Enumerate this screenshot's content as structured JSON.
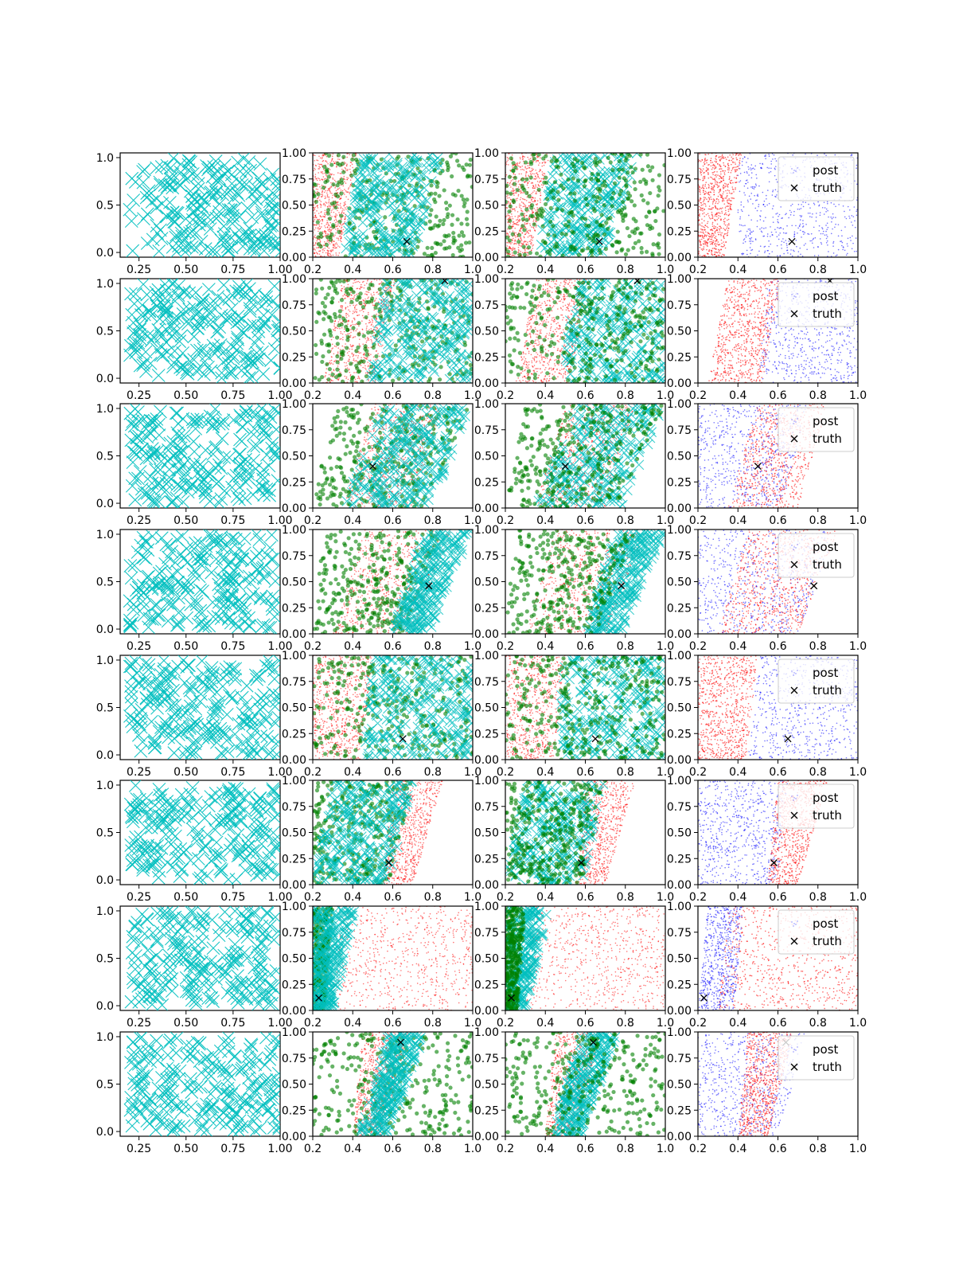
{
  "chart_data": {
    "type": "scatter",
    "layout": {
      "rows": 8,
      "cols": 4
    },
    "colors": {
      "cyan": "#00bfbf",
      "green": "#008000",
      "red": "#ff0000",
      "blue": "#0000ff",
      "truth": "#000000"
    },
    "col1": {
      "xlim": [
        0.15,
        1.0
      ],
      "ylim": [
        -0.05,
        1.05
      ],
      "xticks": [
        "0.25",
        "0.50",
        "0.75",
        "1.00"
      ],
      "xtick_values": [
        0.25,
        0.5,
        0.75,
        1.0
      ],
      "yticks": [
        "0.0",
        "0.5",
        "1.0"
      ],
      "ytick_values": [
        0.0,
        0.5,
        1.0
      ]
    },
    "cols234": {
      "xlim": [
        0.2,
        1.0
      ],
      "ylim": [
        0.0,
        1.0
      ],
      "xticks": [
        "0.2",
        "0.4",
        "0.6",
        "0.8",
        "1.0"
      ],
      "xtick_values": [
        0.2,
        0.4,
        0.6,
        0.8,
        1.0
      ],
      "yticks": [
        "0.00",
        "0.25",
        "0.50",
        "0.75",
        "1.00"
      ],
      "ytick_values": [
        0.0,
        0.25,
        0.5,
        0.75,
        1.0
      ]
    },
    "legend": {
      "entries": [
        "post",
        "truth"
      ],
      "placement": "upper-right"
    },
    "rows": [
      {
        "truth": [
          0.67,
          0.15
        ],
        "red": {
          "x_at_y0": [
            0.2,
            0.33
          ],
          "x_at_y1": [
            0.2,
            0.42
          ]
        },
        "green": {
          "x_at_y0": [
            0.2,
            1.0
          ],
          "x_at_y1": [
            0.2,
            1.0
          ]
        },
        "cyan": {
          "x_at_y0": [
            0.35,
            0.7
          ],
          "x_at_y1": [
            0.45,
            0.86
          ]
        },
        "blue": {
          "x_at_y0": [
            0.4,
            1.0
          ],
          "x_at_y1": [
            0.4,
            1.0
          ]
        }
      },
      {
        "truth": [
          0.86,
          0.98
        ],
        "red": {
          "x_at_y0": [
            0.25,
            0.52
          ],
          "x_at_y1": [
            0.35,
            0.62
          ]
        },
        "green": {
          "x_at_y0": [
            0.2,
            1.0
          ],
          "x_at_y1": [
            0.2,
            1.0
          ]
        },
        "cyan": {
          "x_at_y0": [
            0.48,
            1.0
          ],
          "x_at_y1": [
            0.55,
            1.0
          ]
        },
        "blue": {
          "x_at_y0": [
            0.5,
            1.0
          ],
          "x_at_y1": [
            0.55,
            1.0
          ]
        }
      },
      {
        "truth": [
          0.5,
          0.4
        ],
        "red": {
          "x_at_y0": [
            0.35,
            0.7
          ],
          "x_at_y1": [
            0.5,
            0.85
          ]
        },
        "green": {
          "x_at_y0": [
            0.2,
            0.75
          ],
          "x_at_y1": [
            0.3,
            1.0
          ]
        },
        "cyan": {
          "x_at_y0": [
            0.35,
            0.78
          ],
          "x_at_y1": [
            0.55,
            1.0
          ]
        },
        "blue": {
          "x_at_y0": [
            0.2,
            0.62
          ],
          "x_at_y1": [
            0.2,
            0.75
          ]
        }
      },
      {
        "truth": [
          0.78,
          0.46
        ],
        "red": {
          "x_at_y0": [
            0.3,
            0.7
          ],
          "x_at_y1": [
            0.45,
            0.9
          ]
        },
        "green": {
          "x_at_y0": [
            0.2,
            0.65
          ],
          "x_at_y1": [
            0.25,
            0.85
          ]
        },
        "cyan": {
          "x_at_y0": [
            0.6,
            0.78
          ],
          "x_at_y1": [
            0.75,
            1.0
          ]
        },
        "blue": {
          "x_at_y0": [
            0.2,
            0.7
          ],
          "x_at_y1": [
            0.2,
            0.9
          ]
        }
      },
      {
        "truth": [
          0.65,
          0.2
        ],
        "red": {
          "x_at_y0": [
            0.2,
            0.44
          ],
          "x_at_y1": [
            0.2,
            0.5
          ]
        },
        "green": {
          "x_at_y0": [
            0.2,
            1.0
          ],
          "x_at_y1": [
            0.2,
            1.0
          ]
        },
        "cyan": {
          "x_at_y0": [
            0.45,
            1.0
          ],
          "x_at_y1": [
            0.5,
            1.0
          ]
        },
        "blue": {
          "x_at_y0": [
            0.45,
            1.0
          ],
          "x_at_y1": [
            0.5,
            1.0
          ]
        }
      },
      {
        "truth": [
          0.58,
          0.21
        ],
        "red": {
          "x_at_y0": [
            0.55,
            0.7
          ],
          "x_at_y1": [
            0.6,
            0.85
          ]
        },
        "green": {
          "x_at_y0": [
            0.2,
            0.58
          ],
          "x_at_y1": [
            0.2,
            0.7
          ]
        },
        "cyan": {
          "x_at_y0": [
            0.2,
            0.58
          ],
          "x_at_y1": [
            0.3,
            0.7
          ]
        },
        "blue": {
          "x_at_y0": [
            0.2,
            0.6
          ],
          "x_at_y1": [
            0.2,
            0.65
          ]
        }
      },
      {
        "truth": [
          0.23,
          0.12
        ],
        "red": {
          "x_at_y0": [
            0.3,
            1.0
          ],
          "x_at_y1": [
            0.35,
            1.0
          ]
        },
        "green": {
          "x_at_y0": [
            0.2,
            0.26
          ],
          "x_at_y1": [
            0.2,
            0.3
          ]
        },
        "cyan": {
          "x_at_y0": [
            0.2,
            0.3
          ],
          "x_at_y1": [
            0.2,
            0.42
          ]
        },
        "blue": {
          "x_at_y0": [
            0.2,
            0.38
          ],
          "x_at_y1": [
            0.25,
            0.43
          ]
        }
      },
      {
        "truth": [
          0.64,
          0.9
        ],
        "red": {
          "x_at_y0": [
            0.4,
            0.55
          ],
          "x_at_y1": [
            0.45,
            0.68
          ]
        },
        "green": {
          "x_at_y0": [
            0.2,
            1.0
          ],
          "x_at_y1": [
            0.2,
            1.0
          ]
        },
        "cyan": {
          "x_at_y0": [
            0.43,
            0.58
          ],
          "x_at_y1": [
            0.58,
            0.76
          ]
        },
        "blue": {
          "x_at_y0": [
            0.2,
            0.6
          ],
          "x_at_y1": [
            0.2,
            0.75
          ]
        }
      }
    ]
  }
}
